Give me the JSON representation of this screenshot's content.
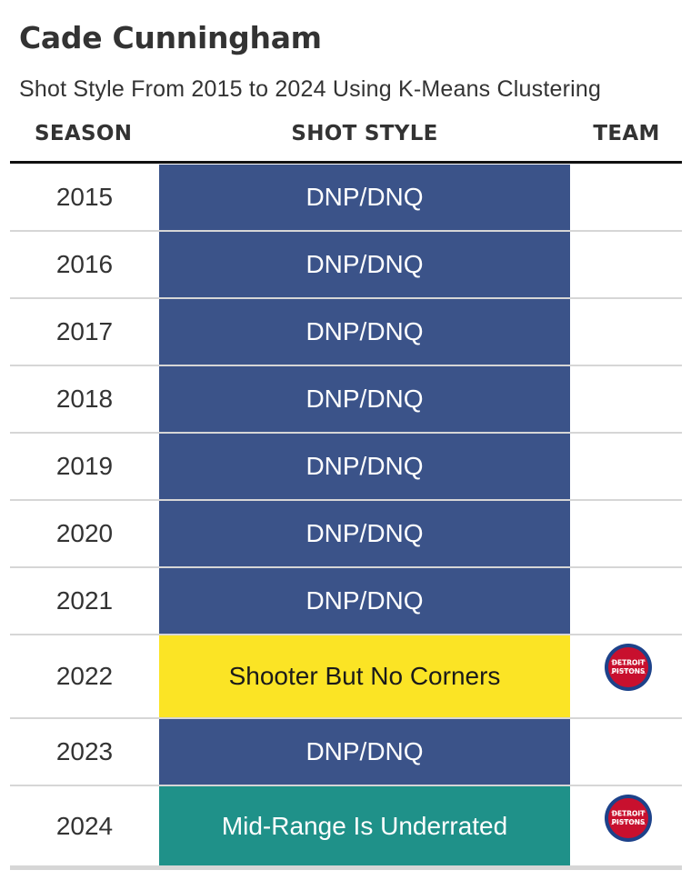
{
  "title": "Cade Cunningham",
  "subtitle": "Shot Style From 2015 to 2024 Using K-Means Clustering",
  "headers": {
    "season": "SEASON",
    "shot_style": "SHOT STYLE",
    "team": "TEAM"
  },
  "colors": {
    "dnp": "#3b5389",
    "shooter_but_no_corners": "#fbe425",
    "mid_range_is_underrated": "#1f9189",
    "pistons_red": "#c8102e",
    "pistons_blue": "#1d428a"
  },
  "team_logo_text": "DETROIT PISTONS",
  "rows": [
    {
      "season": "2015",
      "style": "DNP/DNQ",
      "style_key": "dnp",
      "team": ""
    },
    {
      "season": "2016",
      "style": "DNP/DNQ",
      "style_key": "dnp",
      "team": ""
    },
    {
      "season": "2017",
      "style": "DNP/DNQ",
      "style_key": "dnp",
      "team": ""
    },
    {
      "season": "2018",
      "style": "DNP/DNQ",
      "style_key": "dnp",
      "team": ""
    },
    {
      "season": "2019",
      "style": "DNP/DNQ",
      "style_key": "dnp",
      "team": ""
    },
    {
      "season": "2020",
      "style": "DNP/DNQ",
      "style_key": "dnp",
      "team": ""
    },
    {
      "season": "2021",
      "style": "DNP/DNQ",
      "style_key": "dnp",
      "team": ""
    },
    {
      "season": "2022",
      "style": "Shooter But No Corners",
      "style_key": "shooter_but_no_corners",
      "team": "pistons-logo"
    },
    {
      "season": "2023",
      "style": "DNP/DNQ",
      "style_key": "dnp",
      "team": ""
    },
    {
      "season": "2024",
      "style": "Mid-Range Is Underrated",
      "style_key": "mid_range_is_underrated",
      "team": "pistons-logo"
    }
  ]
}
